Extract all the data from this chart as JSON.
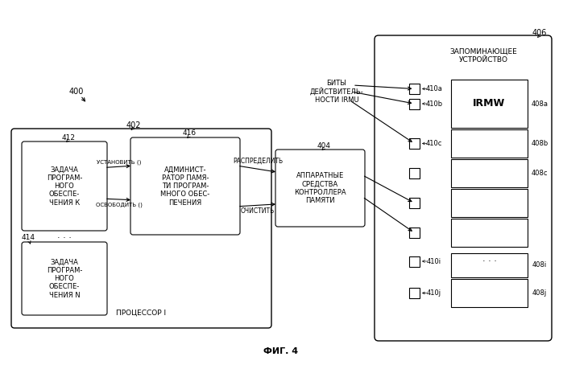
{
  "fig_label": "ФИГ. 4",
  "ref_400": "400",
  "ref_402": "402",
  "ref_404": "404",
  "ref_406": "406",
  "ref_408a": "408a",
  "ref_408b": "408b",
  "ref_408c": "408c",
  "ref_408i": "408i",
  "ref_408j": "408j",
  "ref_410a": "410a",
  "ref_410b": "410b",
  "ref_410c": "410c",
  "ref_410i": "410i",
  "ref_410j": "410j",
  "ref_412": "412",
  "ref_414": "414",
  "ref_416": "416",
  "proc_label": "ПРОЦЕССОР I",
  "mem_label": "ЗАПОМИНАЮЩЕЕ\nУСТРОЙСТВО",
  "hw_label": "АППАРАТНЫЕ\nСРЕДСТВА\nКОНТРОЛЛЕРА\nПАМЯТИ",
  "admin_label": "АДМИНИСТ-\nРАТОР ПАМЯ-\nТИ ПРОГРАМ-\nМНОГО ОБЕС-\nПЕЧЕНИЯ",
  "task_k_label": "ЗАДАЧА\nПРОГРАМ-\nНОГО\nОБЕСПЕ-\nЧЕНИЯ К",
  "task_n_label": "ЗАДАЧА\nПРОГРАМ-\nНОГО\nОБЕСПЕ-\nЧЕНИЯ N",
  "bits_label": "БИТЫ\nДЕЙСТВИТЕЛЬ-\nНОСТИ IRMU",
  "irmw_label": "IRMW",
  "set_label": "УСТАНОВИТЬ ()",
  "free_label": "ОСВОБОДИТЬ ()",
  "alloc_label": "РАСПРЕДЕЛИТЬ",
  "clear_label": "ОЧИСТИТЬ",
  "bg_color": "#ffffff"
}
